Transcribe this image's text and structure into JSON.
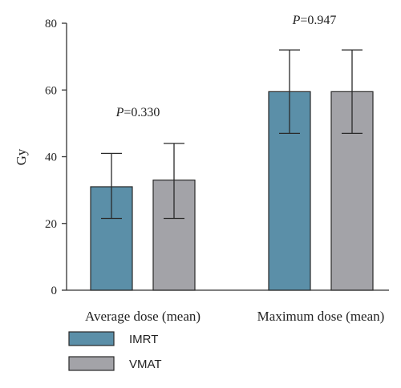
{
  "chart_data": {
    "type": "bar",
    "ylabel": "Gy",
    "xlabel": "",
    "ylim": [
      0,
      80
    ],
    "yticks": [
      0,
      20,
      40,
      60,
      80
    ],
    "categories": [
      "Average dose (mean)",
      "Maximum dose (mean)"
    ],
    "series": [
      {
        "name": "IMRT",
        "color": "#5b8fa8",
        "values": [
          31,
          59.5
        ],
        "err_low": [
          21.5,
          47
        ],
        "err_high": [
          41,
          72
        ]
      },
      {
        "name": "VMAT",
        "color": "#a3a3a8",
        "values": [
          33,
          59.5
        ],
        "err_low": [
          21.5,
          47
        ],
        "err_high": [
          44,
          72
        ]
      }
    ],
    "annotations": [
      {
        "category": 0,
        "label_prefix": "P",
        "label_value": "=0.330"
      },
      {
        "category": 1,
        "label_prefix": "P",
        "label_value": "=0.947"
      }
    ]
  }
}
